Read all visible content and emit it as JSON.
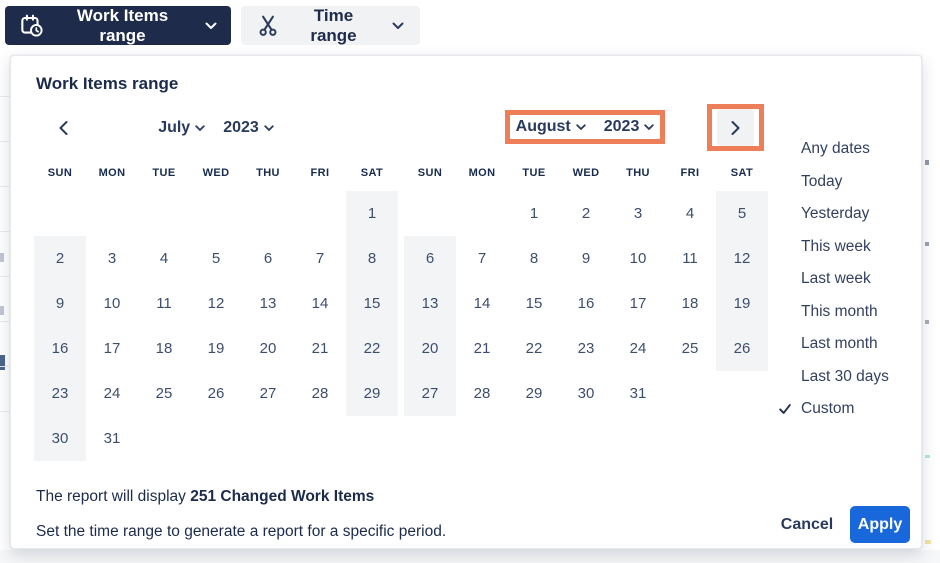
{
  "toolbar": {
    "work_items_label": "Work Items range",
    "time_range_label": "Time range"
  },
  "panel": {
    "title": "Work Items range",
    "day_headers": [
      "SUN",
      "MON",
      "TUE",
      "WED",
      "THU",
      "FRI",
      "SAT"
    ],
    "calendars": [
      {
        "month": "July",
        "year": "2023",
        "weeks": [
          [
            "",
            "",
            "",
            "",
            "",
            "",
            "1"
          ],
          [
            "2",
            "3",
            "4",
            "5",
            "6",
            "7",
            "8"
          ],
          [
            "9",
            "10",
            "11",
            "12",
            "13",
            "14",
            "15"
          ],
          [
            "16",
            "17",
            "18",
            "19",
            "20",
            "21",
            "22"
          ],
          [
            "23",
            "24",
            "25",
            "26",
            "27",
            "28",
            "29"
          ],
          [
            "30",
            "31",
            "",
            "",
            "",
            "",
            ""
          ]
        ]
      },
      {
        "month": "August",
        "year": "2023",
        "weeks": [
          [
            "",
            "",
            "1",
            "2",
            "3",
            "4",
            "5"
          ],
          [
            "6",
            "7",
            "8",
            "9",
            "10",
            "11",
            "12"
          ],
          [
            "13",
            "14",
            "15",
            "16",
            "17",
            "18",
            "19"
          ],
          [
            "20",
            "21",
            "22",
            "23",
            "24",
            "25",
            "26"
          ],
          [
            "27",
            "28",
            "29",
            "30",
            "31",
            "",
            ""
          ]
        ]
      }
    ],
    "presets": [
      "Any dates",
      "Today",
      "Yesterday",
      "This week",
      "Last week",
      "This month",
      "Last month",
      "Last 30 days",
      "Custom"
    ],
    "selected_preset": "Custom",
    "footer": {
      "report_prefix": "The report will display ",
      "report_bold": "251 Changed Work Items",
      "hint": "Set the time range to generate a report for a specific period.",
      "cancel_label": "Cancel",
      "apply_label": "Apply"
    }
  },
  "colors": {
    "navy_button": "#1e2b4b",
    "highlight_orange": "#ee7e58",
    "apply_blue": "#1868db",
    "weekend_shade": "#f3f4f6"
  }
}
